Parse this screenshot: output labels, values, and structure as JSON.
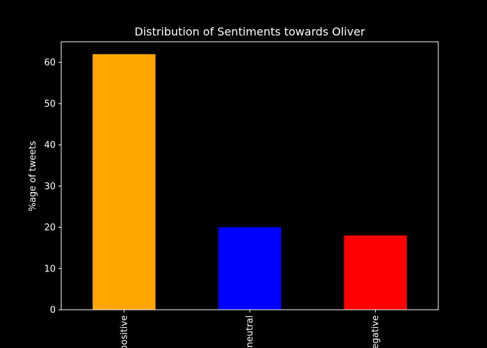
{
  "chart_data": {
    "type": "bar",
    "title": "Distribution of Sentiments towards Oliver",
    "xlabel": "",
    "ylabel": "%age of tweets",
    "categories": [
      "positive",
      "neutral",
      "negative"
    ],
    "values": [
      62,
      20,
      18
    ],
    "bar_colors": [
      "#ffa500",
      "#0000ff",
      "#ff0000"
    ],
    "ylim": [
      0,
      65
    ],
    "yticks": [
      0,
      10,
      20,
      30,
      40,
      50,
      60
    ],
    "grid": false,
    "legend": "none",
    "background": "#000000",
    "foreground": "#ffffff"
  }
}
